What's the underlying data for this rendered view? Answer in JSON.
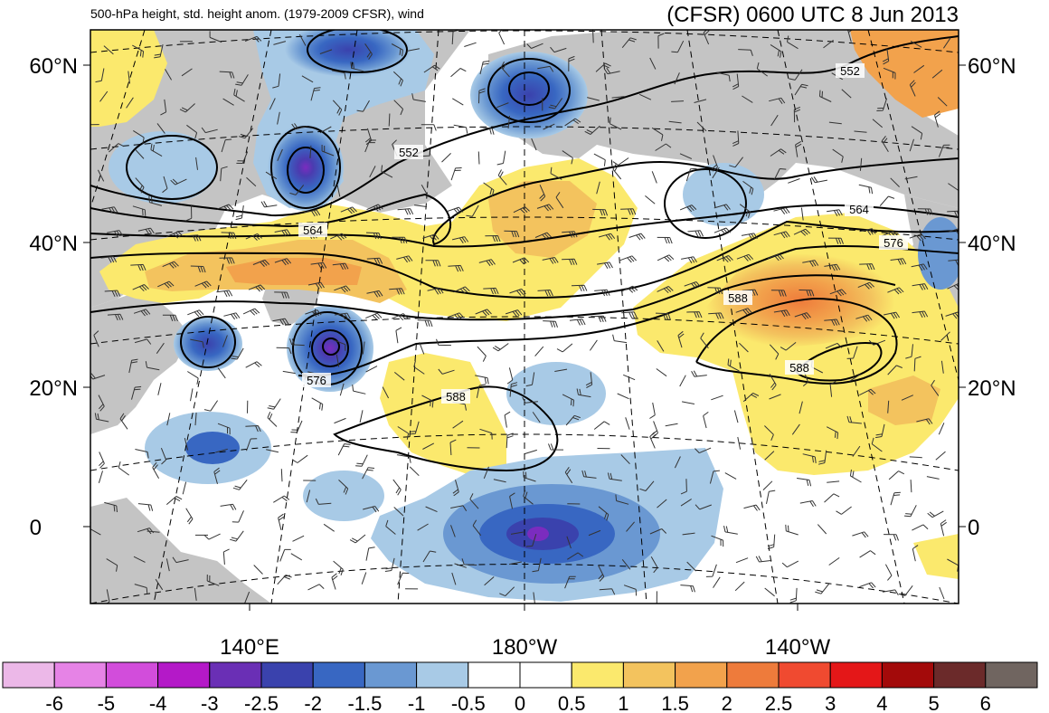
{
  "title_left": "500-hPa height, std. height anom. (1979-2009 CFSR), wind",
  "title_right": "(CFSR) 0600 UTC 8 Jun 2013",
  "lat_labels": [
    {
      "value": 60,
      "text": "60°N"
    },
    {
      "value": 40,
      "text": "40°N"
    },
    {
      "value": 20,
      "text": "20°N"
    },
    {
      "value": 0,
      "text": "0"
    }
  ],
  "lon_labels": [
    {
      "value": 140,
      "text": "140°E"
    },
    {
      "value": 180,
      "text": "180°W"
    },
    {
      "value": -140,
      "text": "140°W"
    }
  ],
  "contour_labels": [
    {
      "text": "552"
    },
    {
      "text": "552"
    },
    {
      "text": "564"
    },
    {
      "text": "564"
    },
    {
      "text": "576"
    },
    {
      "text": "576"
    },
    {
      "text": "588"
    },
    {
      "text": "588"
    },
    {
      "text": "588"
    }
  ],
  "colorbar": {
    "labels": [
      "-6",
      "-5",
      "-4",
      "-3",
      "-2.5",
      "-2",
      "-1.5",
      "-1",
      "-0.5",
      "0",
      "0.5",
      "1",
      "1.5",
      "2",
      "2.5",
      "3",
      "4",
      "5",
      "6"
    ],
    "colors": [
      "#ecb8e8",
      "#e683e6",
      "#d24ddb",
      "#b419c8",
      "#6a2fb5",
      "#3a42ad",
      "#3867c2",
      "#6a98d2",
      "#a8cae6",
      "#ffffff",
      "#ffffff",
      "#fbe96d",
      "#f3c35e",
      "#f2a24c",
      "#ee7b3b",
      "#f04a30",
      "#e41718",
      "#a30a0a",
      "#6b2a2a",
      "#706560"
    ]
  },
  "colors": {
    "land": "#c4c4c4",
    "ocean": "#ffffff",
    "contour": "#000000"
  }
}
